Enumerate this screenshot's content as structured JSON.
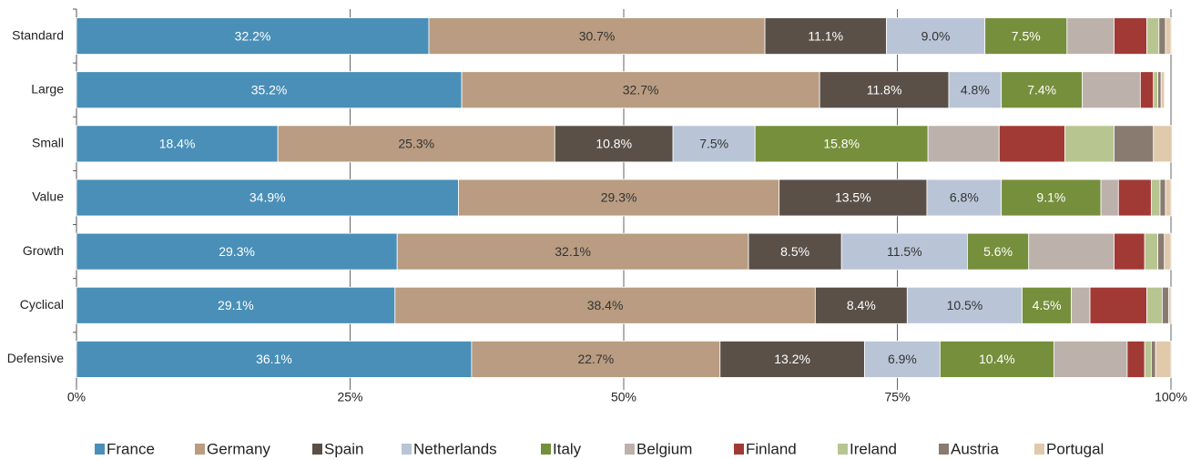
{
  "chart_data": {
    "type": "stacked-bar-horizontal",
    "categories": [
      "Standard",
      "Large",
      "Small",
      "Value",
      "Growth",
      "Cyclical",
      "Defensive"
    ],
    "series": [
      {
        "name": "France",
        "color": "#4a8fb7",
        "values": [
          32.2,
          35.2,
          18.4,
          34.9,
          29.3,
          29.1,
          36.1
        ],
        "value_labels": [
          "32.2%",
          "35.2%",
          "18.4%",
          "34.9%",
          "29.3%",
          "29.1%",
          "36.1%"
        ]
      },
      {
        "name": "Germany",
        "color": "#b99c81",
        "values": [
          30.7,
          32.7,
          25.3,
          29.3,
          32.1,
          38.4,
          22.7
        ],
        "value_labels": [
          "30.7%",
          "32.7%",
          "25.3%",
          "29.3%",
          "32.1%",
          "38.4%",
          "22.7%"
        ]
      },
      {
        "name": "Spain",
        "color": "#5a5048",
        "values": [
          11.1,
          11.8,
          10.8,
          13.5,
          8.5,
          8.4,
          13.2
        ],
        "value_labels": [
          "11.1%",
          "11.8%",
          "10.8%",
          "13.5%",
          "8.5%",
          "8.4%",
          "13.2%"
        ]
      },
      {
        "name": "Netherlands",
        "color": "#b9c5d7",
        "values": [
          9.0,
          4.8,
          7.5,
          6.8,
          11.5,
          10.5,
          6.9
        ],
        "value_labels": [
          "9.0%",
          "4.8%",
          "7.5%",
          "6.8%",
          "11.5%",
          "10.5%",
          "6.9%"
        ]
      },
      {
        "name": "Italy",
        "color": "#768f3c",
        "values": [
          7.5,
          7.4,
          15.8,
          9.1,
          5.6,
          4.5,
          10.4
        ],
        "value_labels": [
          "7.5%",
          "7.4%",
          "15.8%",
          "9.1%",
          "5.6%",
          "4.5%",
          "10.4%"
        ]
      },
      {
        "name": "Belgium",
        "color": "#bdb1ab",
        "values": [
          4.3,
          5.3,
          6.5,
          1.6,
          7.8,
          1.7,
          6.7
        ]
      },
      {
        "name": "Finland",
        "color": "#a13a35",
        "values": [
          3.0,
          1.2,
          6.0,
          3.0,
          2.8,
          5.2,
          1.6
        ]
      },
      {
        "name": "Ireland",
        "color": "#b7c590",
        "values": [
          1.1,
          0.4,
          4.5,
          0.8,
          1.2,
          1.4,
          0.6
        ]
      },
      {
        "name": "Austria",
        "color": "#8a7b71",
        "values": [
          0.6,
          0.3,
          3.6,
          0.5,
          0.6,
          0.6,
          0.4
        ]
      },
      {
        "name": "Portugal",
        "color": "#e1c9ab",
        "values": [
          0.5,
          0.3,
          1.7,
          0.5,
          0.6,
          0.2,
          1.4
        ]
      }
    ],
    "xlim": [
      0,
      100
    ],
    "xticks": [
      {
        "value": 0,
        "label": "0%"
      },
      {
        "value": 25,
        "label": "25%"
      },
      {
        "value": 50,
        "label": "50%"
      },
      {
        "value": 75,
        "label": "75%"
      },
      {
        "value": 100,
        "label": "100%"
      }
    ],
    "grid": true,
    "legend": "bottom"
  }
}
